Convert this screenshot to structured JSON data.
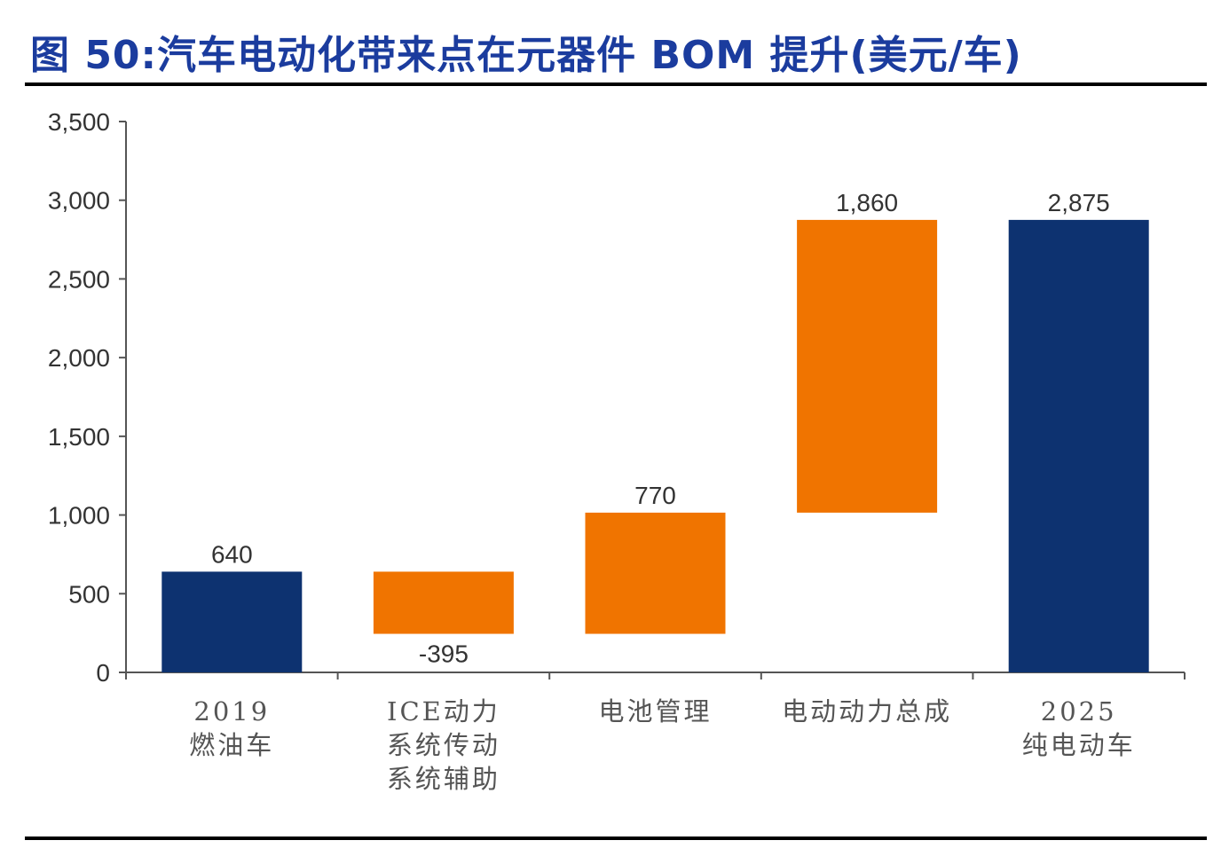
{
  "chart_data": {
    "type": "bar",
    "subtype": "waterfall",
    "title": "图 50:汽车电动化带来点在元器件 BOM 提升(美元/车)",
    "categories": [
      [
        "2019",
        "燃油车"
      ],
      [
        "ICE动力",
        "系统传动",
        "系统辅助"
      ],
      [
        "电池管理"
      ],
      [
        "电动动力总成"
      ],
      [
        "2025",
        "纯电动车"
      ]
    ],
    "values": [
      640,
      -395,
      770,
      1860,
      2875
    ],
    "value_labels": [
      "640",
      "-395",
      "770",
      "1,860",
      "2,875"
    ],
    "bar_kinds": [
      "total",
      "delta",
      "delta",
      "delta",
      "total"
    ],
    "ylim": [
      0,
      3500
    ],
    "yticks": [
      0,
      500,
      1000,
      1500,
      2000,
      2500,
      3000,
      3500
    ],
    "ytick_labels": [
      "0",
      "500",
      "1,000",
      "1,500",
      "2,000",
      "2,500",
      "3,000",
      "3,500"
    ],
    "xlabel": "",
    "ylabel": "",
    "grid": false,
    "legend": "none",
    "colors": {
      "total": "#0d3270",
      "delta": "#f07400"
    }
  }
}
